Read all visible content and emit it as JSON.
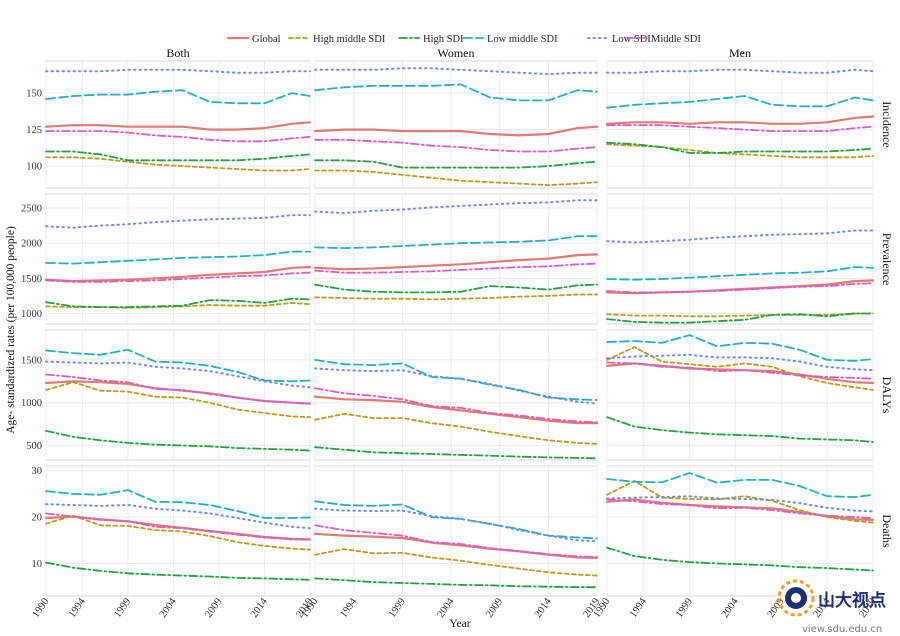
{
  "chart_data": {
    "type": "line",
    "xlabel": "Year",
    "ylabel": "Age- standardized rates (per 100,000 people)",
    "x_ticks": [
      1990,
      1994,
      1999,
      2004,
      2009,
      2014,
      2019
    ],
    "columns": [
      "Both",
      "Women",
      "Men"
    ],
    "rows": [
      {
        "name": "Incidence",
        "ylim": [
          85,
          172
        ],
        "yticks": [
          100,
          125,
          150
        ]
      },
      {
        "name": "Prevalence",
        "ylim": [
          850,
          2700
        ],
        "yticks": [
          1000,
          1500,
          2000,
          2500
        ]
      },
      {
        "name": "DALYs",
        "ylim": [
          330,
          1850
        ],
        "yticks": [
          500,
          1000,
          1500
        ]
      },
      {
        "name": "Deaths",
        "ylim": [
          3,
          31
        ],
        "yticks": [
          10,
          20,
          30
        ]
      }
    ],
    "x": [
      1990,
      1993,
      1996,
      1999,
      2002,
      2005,
      2008,
      2011,
      2014,
      2017,
      2019
    ],
    "series": [
      {
        "name": "Global",
        "color": "#e07a72",
        "dash": "none",
        "width": 2.2
      },
      {
        "name": "High  middle SDI",
        "color": "#b89b22",
        "dash": "4,3",
        "width": 1.8
      },
      {
        "name": "High SDI",
        "color": "#21a045",
        "dash": "8,3,2,3",
        "width": 1.8
      },
      {
        "name": "Low  middle SDI",
        "color": "#1fb0c2",
        "dash": "9,4",
        "width": 1.8
      },
      {
        "name": "Low SDI",
        "color": "#6f8fd8",
        "dash": "1.5,4",
        "width": 2
      },
      {
        "name": "Middle SDI",
        "color": "#d85dcb",
        "dash": "8,3,2,3",
        "width": 1.8
      }
    ],
    "values": {
      "Incidence": {
        "Both": {
          "Global": [
            127,
            128,
            128,
            127,
            127,
            127,
            125,
            125,
            126,
            129,
            130
          ],
          "High  middle SDI": [
            106,
            106,
            105,
            103,
            101,
            100,
            99,
            98,
            97,
            97,
            98
          ],
          "High SDI": [
            110,
            110,
            108,
            104,
            104,
            104,
            104,
            104,
            105,
            107,
            108
          ],
          "Low  middle SDI": [
            146,
            148,
            149,
            149,
            151,
            152,
            144,
            143,
            143,
            150,
            148
          ],
          "Low SDI": [
            165,
            165,
            165,
            166,
            166,
            166,
            165,
            164,
            164,
            165,
            165
          ],
          "Middle SDI": [
            124,
            124,
            124,
            123,
            121,
            120,
            118,
            117,
            117,
            119,
            120
          ]
        },
        "Women": {
          "Global": [
            124,
            125,
            125,
            124,
            124,
            124,
            122,
            121,
            122,
            126,
            127
          ],
          "High  middle SDI": [
            97,
            97,
            96,
            94,
            92,
            90,
            89,
            88,
            87,
            88,
            89
          ],
          "High SDI": [
            104,
            104,
            103,
            99,
            99,
            99,
            99,
            99,
            100,
            102,
            103
          ],
          "Low  middle SDI": [
            152,
            154,
            155,
            155,
            155,
            156,
            147,
            145,
            145,
            152,
            151
          ],
          "Low SDI": [
            166,
            166,
            166,
            167,
            167,
            166,
            165,
            164,
            163,
            164,
            164
          ],
          "Middle SDI": [
            118,
            118,
            117,
            116,
            114,
            113,
            111,
            110,
            110,
            112,
            113
          ]
        },
        "Men": {
          "Global": [
            129,
            130,
            130,
            129,
            130,
            130,
            129,
            129,
            130,
            133,
            134
          ],
          "High  middle SDI": [
            115,
            114,
            113,
            111,
            109,
            108,
            107,
            106,
            106,
            106,
            107
          ],
          "High SDI": [
            116,
            115,
            113,
            109,
            109,
            110,
            110,
            110,
            110,
            111,
            112
          ],
          "Low  middle SDI": [
            140,
            142,
            143,
            144,
            146,
            148,
            142,
            141,
            141,
            147,
            145
          ],
          "Low SDI": [
            164,
            164,
            165,
            165,
            166,
            166,
            165,
            164,
            164,
            166,
            165
          ],
          "Middle SDI": [
            128,
            128,
            128,
            127,
            126,
            125,
            124,
            124,
            124,
            126,
            127
          ]
        }
      },
      "Prevalence": {
        "Both": {
          "Global": [
            1480,
            1460,
            1470,
            1480,
            1500,
            1520,
            1550,
            1570,
            1590,
            1650,
            1660
          ],
          "High  middle SDI": [
            1100,
            1090,
            1090,
            1080,
            1090,
            1100,
            1120,
            1110,
            1110,
            1150,
            1130
          ],
          "High SDI": [
            1160,
            1100,
            1090,
            1090,
            1100,
            1110,
            1190,
            1180,
            1150,
            1210,
            1200
          ],
          "Low  middle SDI": [
            1720,
            1710,
            1730,
            1750,
            1770,
            1790,
            1800,
            1810,
            1830,
            1880,
            1880
          ],
          "Low SDI": [
            2240,
            2220,
            2250,
            2270,
            2300,
            2320,
            2340,
            2350,
            2360,
            2400,
            2400
          ],
          "Middle SDI": [
            1470,
            1450,
            1450,
            1460,
            1470,
            1490,
            1510,
            1530,
            1540,
            1570,
            1580
          ]
        },
        "Women": {
          "Global": [
            1650,
            1630,
            1640,
            1660,
            1680,
            1700,
            1730,
            1760,
            1780,
            1830,
            1840
          ],
          "High  middle SDI": [
            1230,
            1220,
            1210,
            1210,
            1200,
            1210,
            1220,
            1240,
            1250,
            1270,
            1270
          ],
          "High SDI": [
            1410,
            1340,
            1310,
            1300,
            1300,
            1310,
            1390,
            1370,
            1340,
            1400,
            1410
          ],
          "Low  middle SDI": [
            1940,
            1930,
            1940,
            1960,
            1980,
            2000,
            2010,
            2020,
            2040,
            2100,
            2100
          ],
          "Low SDI": [
            2450,
            2430,
            2460,
            2480,
            2510,
            2530,
            2550,
            2570,
            2580,
            2610,
            2610
          ],
          "Middle SDI": [
            1610,
            1580,
            1580,
            1590,
            1600,
            1620,
            1640,
            1660,
            1670,
            1700,
            1710
          ]
        },
        "Men": {
          "Global": [
            1300,
            1290,
            1300,
            1310,
            1330,
            1350,
            1370,
            1390,
            1410,
            1460,
            1470
          ],
          "High  middle SDI": [
            990,
            970,
            970,
            960,
            960,
            970,
            980,
            980,
            980,
            1000,
            1000
          ],
          "High SDI": [
            920,
            880,
            870,
            870,
            890,
            910,
            980,
            990,
            960,
            1000,
            1000
          ],
          "Low  middle SDI": [
            1490,
            1480,
            1490,
            1510,
            1530,
            1550,
            1570,
            1580,
            1600,
            1660,
            1650
          ],
          "Low SDI": [
            2030,
            2010,
            2030,
            2050,
            2080,
            2100,
            2120,
            2130,
            2140,
            2180,
            2180
          ],
          "Middle SDI": [
            1320,
            1300,
            1300,
            1310,
            1320,
            1340,
            1360,
            1380,
            1390,
            1420,
            1430
          ]
        }
      },
      "DALYs": {
        "Both": {
          "Global": [
            1230,
            1250,
            1240,
            1220,
            1170,
            1140,
            1110,
            1060,
            1020,
            1000,
            990
          ],
          "High  middle SDI": [
            1150,
            1240,
            1140,
            1130,
            1070,
            1060,
            1000,
            920,
            880,
            840,
            830
          ],
          "High SDI": [
            670,
            600,
            560,
            530,
            510,
            500,
            490,
            470,
            460,
            450,
            440
          ],
          "Low  middle SDI": [
            1610,
            1580,
            1560,
            1620,
            1480,
            1470,
            1430,
            1360,
            1260,
            1250,
            1260
          ],
          "Low SDI": [
            1480,
            1470,
            1460,
            1470,
            1420,
            1400,
            1370,
            1310,
            1250,
            1200,
            1180
          ],
          "Middle SDI": [
            1330,
            1300,
            1260,
            1240,
            1160,
            1150,
            1100,
            1060,
            1020,
            1000,
            990
          ]
        },
        "Women": {
          "Global": [
            1070,
            1040,
            1030,
            1010,
            950,
            910,
            870,
            830,
            790,
            760,
            760
          ],
          "High  middle SDI": [
            800,
            870,
            820,
            820,
            760,
            720,
            660,
            610,
            560,
            530,
            520
          ],
          "High SDI": [
            480,
            450,
            420,
            410,
            400,
            390,
            380,
            370,
            360,
            355,
            350
          ],
          "Low  middle SDI": [
            1500,
            1450,
            1440,
            1460,
            1300,
            1280,
            1210,
            1150,
            1060,
            1040,
            1030
          ],
          "Low SDI": [
            1400,
            1380,
            1370,
            1380,
            1310,
            1280,
            1220,
            1140,
            1070,
            1010,
            990
          ],
          "Middle SDI": [
            1170,
            1110,
            1080,
            1040,
            960,
            940,
            880,
            850,
            810,
            780,
            770
          ]
        },
        "Men": {
          "Global": [
            1430,
            1460,
            1430,
            1400,
            1390,
            1380,
            1370,
            1330,
            1280,
            1240,
            1230
          ],
          "High  middle SDI": [
            1500,
            1650,
            1480,
            1450,
            1420,
            1460,
            1420,
            1310,
            1230,
            1180,
            1150
          ],
          "High SDI": [
            830,
            720,
            680,
            650,
            630,
            620,
            610,
            580,
            570,
            560,
            540
          ],
          "Low  middle SDI": [
            1710,
            1720,
            1700,
            1790,
            1660,
            1700,
            1690,
            1620,
            1500,
            1490,
            1510
          ],
          "Low SDI": [
            1520,
            1540,
            1550,
            1560,
            1530,
            1530,
            1520,
            1480,
            1420,
            1390,
            1380
          ],
          "Middle SDI": [
            1470,
            1460,
            1420,
            1410,
            1370,
            1380,
            1350,
            1320,
            1300,
            1290,
            1280
          ]
        }
      },
      "Deaths": {
        "Both": {
          "Global": [
            19.8,
            20.1,
            19.5,
            19.1,
            18.3,
            17.7,
            17.0,
            16.4,
            15.7,
            15.3,
            15.2
          ],
          "High  middle SDI": [
            18.6,
            20.3,
            18.2,
            18.1,
            17.2,
            16.9,
            15.9,
            14.6,
            13.8,
            13.2,
            13.0
          ],
          "High SDI": [
            10.2,
            9.1,
            8.4,
            7.9,
            7.6,
            7.4,
            7.2,
            6.9,
            6.8,
            6.6,
            6.5
          ],
          "Low  middle SDI": [
            25.6,
            25.0,
            24.8,
            25.8,
            23.3,
            23.2,
            22.6,
            21.3,
            19.8,
            19.8,
            19.9
          ],
          "Low SDI": [
            22.8,
            22.6,
            22.4,
            22.6,
            21.8,
            21.4,
            20.8,
            19.8,
            18.8,
            17.9,
            17.6
          ],
          "Middle SDI": [
            20.8,
            20.1,
            19.4,
            19.1,
            17.9,
            17.6,
            16.9,
            16.2,
            15.6,
            15.2,
            15.1
          ]
        },
        "Women": {
          "Global": [
            16.4,
            16.0,
            15.8,
            15.5,
            14.5,
            13.9,
            13.2,
            12.6,
            11.9,
            11.3,
            11.2
          ],
          "High  middle SDI": [
            11.9,
            13.1,
            12.2,
            12.3,
            11.3,
            10.6,
            9.7,
            8.9,
            8.1,
            7.6,
            7.4
          ],
          "High SDI": [
            6.8,
            6.4,
            6.0,
            5.8,
            5.6,
            5.4,
            5.3,
            5.1,
            5.0,
            4.9,
            4.9
          ],
          "Low  middle SDI": [
            23.4,
            22.6,
            22.4,
            22.7,
            20.0,
            19.6,
            18.5,
            17.4,
            16.0,
            15.6,
            15.4
          ],
          "Low SDI": [
            21.8,
            21.4,
            21.3,
            21.4,
            20.2,
            19.6,
            18.6,
            17.2,
            16.0,
            15.0,
            14.8
          ],
          "Middle SDI": [
            18.2,
            17.2,
            16.6,
            16.0,
            14.6,
            14.2,
            13.3,
            12.7,
            12.0,
            11.5,
            11.4
          ]
        },
        "Men": {
          "Global": [
            23.3,
            23.8,
            23.1,
            22.6,
            22.3,
            22.1,
            21.9,
            21.1,
            20.2,
            19.5,
            19.4
          ],
          "High  middle SDI": [
            24.8,
            27.8,
            24.2,
            23.9,
            23.8,
            24.5,
            23.5,
            21.5,
            20.0,
            19.2,
            18.8
          ],
          "High SDI": [
            13.4,
            11.6,
            10.8,
            10.3,
            10.0,
            9.8,
            9.6,
            9.2,
            9.0,
            8.7,
            8.5
          ],
          "Low  middle SDI": [
            28.2,
            27.6,
            27.5,
            29.5,
            27.4,
            28.0,
            28.0,
            26.7,
            24.5,
            24.3,
            24.8
          ],
          "Low SDI": [
            24.0,
            24.2,
            24.3,
            24.5,
            24.0,
            23.9,
            23.7,
            23.0,
            22.0,
            21.4,
            21.2
          ],
          "Middle SDI": [
            23.8,
            23.4,
            22.8,
            22.6,
            21.9,
            22.0,
            21.5,
            20.8,
            20.3,
            20.0,
            19.8
          ]
        }
      }
    }
  },
  "watermark": {
    "brand": "山大视点",
    "url": "view.sdu.edu.cn"
  }
}
